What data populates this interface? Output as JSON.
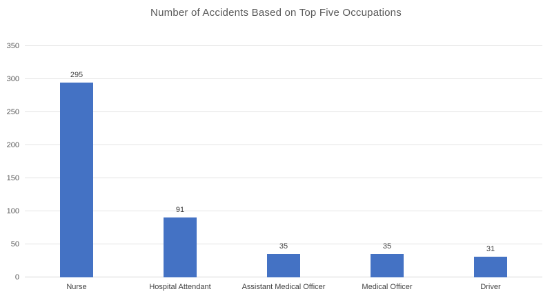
{
  "chart_data": {
    "type": "bar",
    "title": "Number of Accidents Based on Top Five Occupations",
    "categories": [
      "Nurse",
      "Hospital Attendant",
      "Assistant Medical Officer",
      "Medical Officer",
      "Driver"
    ],
    "values": [
      295,
      91,
      35,
      35,
      31
    ],
    "data_labels": [
      "295",
      "91",
      "35",
      "35",
      "31"
    ],
    "xlabel": "",
    "ylabel": "",
    "ylim": [
      0,
      350
    ],
    "yticks": [
      0,
      50,
      100,
      150,
      200,
      250,
      300,
      350
    ],
    "grid": "horizontal",
    "legend": "none",
    "bar_color": "#4472c4",
    "gridline_color": "#e2e2e2",
    "title_color": "#595959",
    "label_color": "#404040"
  }
}
